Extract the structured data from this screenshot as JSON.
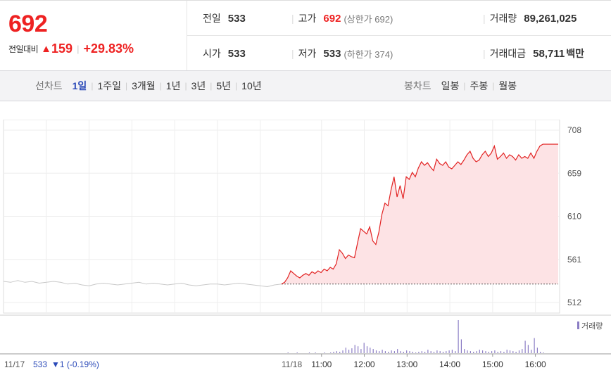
{
  "summary": {
    "current_price": "692",
    "change_label": "전일대비",
    "change_arrow": "▲",
    "change_amount": "159",
    "change_percent": "+29.83%",
    "prev_close_label": "전일",
    "prev_close": "533",
    "high_label": "고가",
    "high": "692",
    "high_sub": "(상한가 692)",
    "volume_label": "거래량",
    "volume": "89,261,025",
    "open_label": "시가",
    "open": "533",
    "low_label": "저가",
    "low": "533",
    "low_sub": "(하한가 374)",
    "value_label": "거래대금",
    "value": "58,711",
    "value_unit": "백만"
  },
  "toolbar": {
    "line_label": "선차트",
    "line_periods": [
      "1일",
      "1주일",
      "3개월",
      "1년",
      "3년",
      "5년",
      "10년"
    ],
    "active_period": "1일",
    "candle_label": "봉차트",
    "candle_periods": [
      "일봉",
      "주봉",
      "월봉"
    ]
  },
  "colors": {
    "up": "#e22222",
    "down": "#2a49b8",
    "area_fill": "#fde3e5",
    "prev_line": "#c8c8c8",
    "volume": "#8a7cc4"
  },
  "chart_data": {
    "type": "line",
    "ylim": [
      500,
      720
    ],
    "y_ticks": [
      708,
      659,
      610,
      561,
      512
    ],
    "baseline": 533,
    "legend": {
      "volume": "거래량"
    },
    "prev_day": {
      "label_date": "11/17",
      "close": "533",
      "change_text": "▼1 (-0.19%)",
      "values": [
        536,
        535,
        537,
        535,
        536,
        534,
        535,
        536,
        535,
        533,
        534,
        532,
        531,
        533,
        534,
        533,
        532,
        533,
        534,
        535,
        533,
        534,
        533,
        532,
        533,
        534,
        532,
        531,
        532,
        533,
        533,
        532,
        533,
        534,
        533,
        532,
        531,
        530,
        532,
        533
      ]
    },
    "today": {
      "label_date": "11/18",
      "x_ticks": [
        "11:00",
        "12:00",
        "13:00",
        "14:00",
        "15:00",
        "16:00"
      ],
      "values": [
        533,
        535,
        540,
        548,
        545,
        542,
        540,
        543,
        545,
        543,
        547,
        545,
        548,
        546,
        550,
        548,
        552,
        550,
        556,
        572,
        568,
        562,
        566,
        564,
        563,
        580,
        596,
        593,
        590,
        598,
        582,
        578,
        592,
        612,
        625,
        622,
        640,
        655,
        632,
        645,
        630,
        655,
        652,
        660,
        655,
        665,
        672,
        668,
        671,
        666,
        662,
        675,
        670,
        668,
        672,
        666,
        664,
        668,
        672,
        669,
        674,
        680,
        684,
        676,
        672,
        674,
        680,
        684,
        678,
        682,
        690,
        675,
        678,
        682,
        676,
        680,
        678,
        674,
        680,
        676,
        678,
        676,
        682,
        676,
        684,
        690,
        692,
        692,
        692,
        692,
        692,
        692
      ],
      "volume": [
        0,
        0,
        1,
        0,
        0,
        1,
        0,
        0,
        0,
        1,
        0,
        1,
        0,
        0,
        1,
        0,
        1,
        2,
        3,
        2,
        4,
        8,
        5,
        7,
        12,
        10,
        6,
        15,
        10,
        8,
        6,
        4,
        3,
        5,
        3,
        2,
        4,
        3,
        6,
        3,
        2,
        4,
        3,
        2,
        1,
        2,
        3,
        2,
        5,
        3,
        2,
        4,
        3,
        2,
        3,
        4,
        5,
        3,
        48,
        20,
        6,
        4,
        3,
        2,
        3,
        5,
        4,
        3,
        2,
        3,
        4,
        2,
        3,
        2,
        5,
        4,
        3,
        2,
        4,
        6,
        18,
        12,
        5,
        22,
        8,
        2,
        1,
        0,
        0,
        0,
        0,
        0
      ]
    }
  }
}
